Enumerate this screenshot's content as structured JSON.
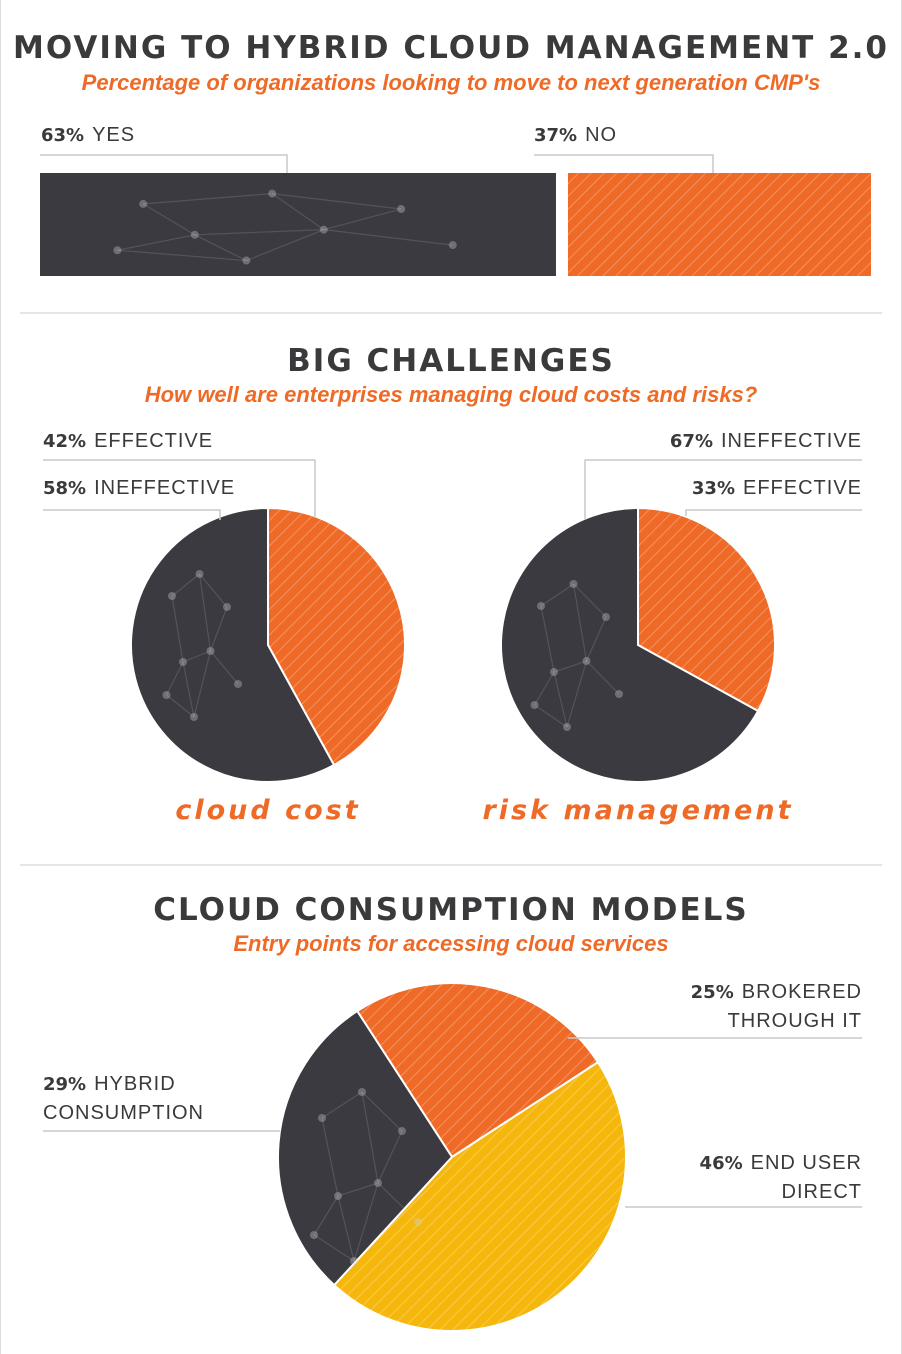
{
  "colors": {
    "dark": "#3b3a40",
    "orange": "#ee6a26",
    "yellow": "#f5b70c",
    "text": "#3a3a3c"
  },
  "section1": {
    "title": "MOVING TO HYBRID CLOUD MANAGEMENT 2.0",
    "subtitle": "Percentage of organizations looking to move to next generation CMP's"
  },
  "section2": {
    "title": "BIG CHALLENGES",
    "subtitle": "How well are enterprises managing cloud costs and risks?"
  },
  "section3": {
    "title": "CLOUD CONSUMPTION MODELS",
    "subtitle": "Entry points for accessing cloud services"
  },
  "chart_data": [
    {
      "type": "bar",
      "orientation": "horizontal-stacked",
      "categories": [
        "YES",
        "NO"
      ],
      "values": [
        63,
        37
      ],
      "labels": [
        {
          "pct": "63%",
          "text": "YES",
          "color": "dark"
        },
        {
          "pct": "37%",
          "text": "NO",
          "color": "orange"
        }
      ]
    },
    {
      "type": "pie",
      "caption": "cloud cost",
      "slices": [
        {
          "pct": "42%",
          "text": "EFFECTIVE",
          "value": 42,
          "color": "orange"
        },
        {
          "pct": "58%",
          "text": "INEFFECTIVE",
          "value": 58,
          "color": "dark"
        }
      ]
    },
    {
      "type": "pie",
      "caption": "risk management",
      "slices": [
        {
          "pct": "33%",
          "text": "EFFECTIVE",
          "value": 33,
          "color": "orange"
        },
        {
          "pct": "67%",
          "text": "INEFFECTIVE",
          "value": 67,
          "color": "dark"
        }
      ]
    },
    {
      "type": "pie",
      "slices": [
        {
          "pct": "25%",
          "text": "BROKERED",
          "text2": "THROUGH IT",
          "value": 25,
          "color": "orange"
        },
        {
          "pct": "46%",
          "text": "END USER",
          "text2": "DIRECT",
          "value": 46,
          "color": "yellow"
        },
        {
          "pct": "29%",
          "text": "HYBRID",
          "text2": "CONSUMPTION",
          "value": 29,
          "color": "dark"
        }
      ]
    }
  ]
}
